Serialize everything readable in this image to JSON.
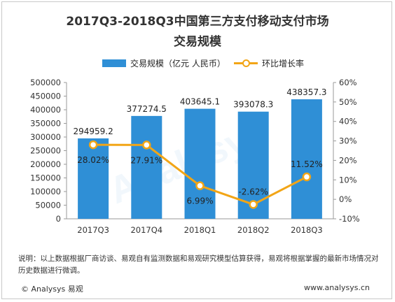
{
  "title_line1": "2017Q3-2018Q3中国第三方支付移动支付市场",
  "title_line2": "交易规模",
  "legend": {
    "bar_label": "交易规模（亿元 人民币）",
    "line_label": "环比增长率"
  },
  "note": "说明：以上数据根据厂商访谈、易观自有监测数据和易观研究模型估算获得，易观将根据掌握的最新市场情况对历史数据进行微调。",
  "footer": {
    "logo_text": "© Analysys 易观",
    "url": "www.analysys.cn"
  },
  "watermark": "Analysys",
  "colors": {
    "bar": "#2f8fd6",
    "line": "#f2a516"
  },
  "chart_data": {
    "type": "bar",
    "categories": [
      "2017Q3",
      "2017Q4",
      "2018Q1",
      "2018Q2",
      "2018Q3"
    ],
    "series": [
      {
        "name": "交易规模（亿元 人民币）",
        "type": "bar",
        "axis": "left",
        "values": [
          294959.2,
          377274.5,
          403645.1,
          393078.3,
          438357.3
        ],
        "labels": [
          "294959.2",
          "377274.5",
          "403645.1",
          "393078.3",
          "438357.3"
        ]
      },
      {
        "name": "环比增长率",
        "type": "line",
        "axis": "right",
        "values": [
          28.02,
          27.91,
          6.99,
          -2.62,
          11.52
        ],
        "labels": [
          "28.02%",
          "27.91%",
          "6.99%",
          "-2.62%",
          "11.52%"
        ]
      }
    ],
    "y_left": {
      "min": 0,
      "max": 500000,
      "step": 50000,
      "ticks": [
        "0",
        "50000",
        "100000",
        "150000",
        "200000",
        "250000",
        "300000",
        "350000",
        "400000",
        "450000",
        "500000"
      ]
    },
    "y_right": {
      "min": -10,
      "max": 60,
      "step": 10,
      "ticks": [
        "-10%",
        "0%",
        "10%",
        "20%",
        "30%",
        "40%",
        "50%",
        "60%"
      ]
    },
    "grid": false,
    "legend_position": "top"
  }
}
